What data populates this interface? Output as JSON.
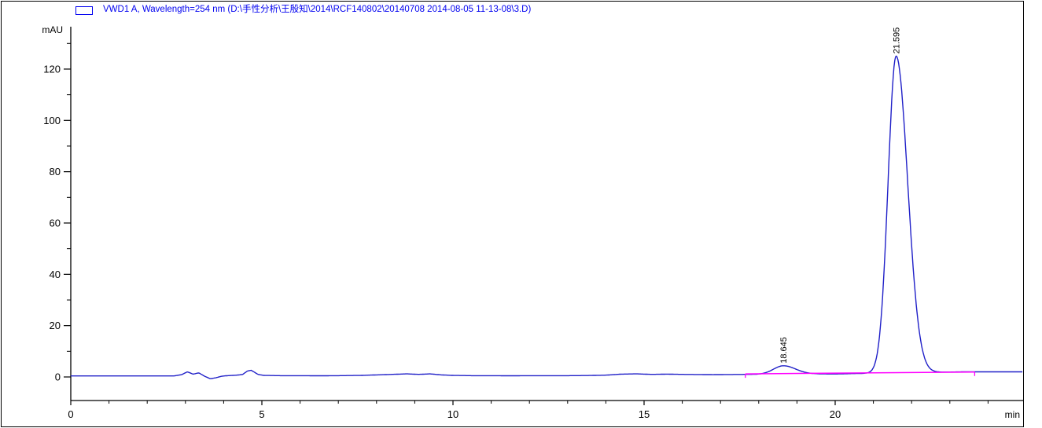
{
  "window": {
    "background": "#ffffff",
    "border_color": "#000000"
  },
  "header": {
    "title": "VWD1 A, Wavelength=254 nm (D:\\手性分析\\王殷知\\2014\\RCF140802\\20140708 2014-08-05 11-13-08\\3.D)",
    "text_color": "#0000f0",
    "swatch_border_color": "#0000f0",
    "swatch_fill": "#ffffff"
  },
  "chart_data": {
    "type": "line",
    "series_name": "VWD1 A, Wavelength=254 nm",
    "xlabel": "min",
    "ylabel": "mAU",
    "xlim": [
      0,
      24.9
    ],
    "ylim": [
      -9,
      137
    ],
    "x_ticks": [
      0,
      5,
      10,
      15,
      20
    ],
    "x_minor_step_min": 1,
    "y_ticks": [
      0,
      20,
      40,
      60,
      80,
      100,
      120
    ],
    "y_minor_step_mau": 10,
    "grid": false,
    "legend_position": "top-left",
    "axis_color": "#000000",
    "trace_color": "#2020c8",
    "integration_color": "#ff00ff",
    "peaks": [
      {
        "rt_min": 18.645,
        "label": "18.645",
        "height_mau": 3.3,
        "sigma_left_min": 0.26,
        "sigma_right_min": 0.32
      },
      {
        "rt_min": 21.595,
        "label": "21.595",
        "height_mau": 123.5,
        "sigma_left_min": 0.21,
        "sigma_right_min": 0.3
      }
    ],
    "integration_baseline": {
      "start_min": 17.65,
      "end_min": 23.65,
      "start_mau": 1.2,
      "end_mau": 1.9
    },
    "baseline_points": [
      [
        0,
        0.4
      ],
      [
        1,
        0.4
      ],
      [
        2,
        0.4
      ],
      [
        2.7,
        0.4
      ],
      [
        2.9,
        0.9
      ],
      [
        3.05,
        2.0
      ],
      [
        3.2,
        1.1
      ],
      [
        3.35,
        1.6
      ],
      [
        3.5,
        0.3
      ],
      [
        3.65,
        -0.7
      ],
      [
        3.8,
        -0.3
      ],
      [
        3.95,
        0.3
      ],
      [
        4.1,
        0.5
      ],
      [
        4.35,
        0.7
      ],
      [
        4.5,
        1.0
      ],
      [
        4.62,
        2.3
      ],
      [
        4.72,
        2.6
      ],
      [
        4.9,
        1.0
      ],
      [
        5.05,
        0.6
      ],
      [
        5.5,
        0.5
      ],
      [
        6,
        0.5
      ],
      [
        6.5,
        0.45
      ],
      [
        7,
        0.5
      ],
      [
        7.6,
        0.6
      ],
      [
        8,
        0.8
      ],
      [
        8.4,
        1.0
      ],
      [
        8.8,
        1.2
      ],
      [
        9.1,
        1.0
      ],
      [
        9.4,
        1.2
      ],
      [
        9.7,
        0.8
      ],
      [
        10,
        0.6
      ],
      [
        10.5,
        0.5
      ],
      [
        11,
        0.5
      ],
      [
        11.5,
        0.45
      ],
      [
        12,
        0.5
      ],
      [
        12.5,
        0.5
      ],
      [
        13,
        0.5
      ],
      [
        13.5,
        0.55
      ],
      [
        14,
        0.7
      ],
      [
        14.4,
        1.1
      ],
      [
        14.8,
        1.2
      ],
      [
        15.2,
        1.0
      ],
      [
        15.6,
        1.1
      ],
      [
        16,
        1.0
      ],
      [
        16.4,
        0.95
      ],
      [
        16.8,
        0.9
      ],
      [
        17.2,
        0.95
      ],
      [
        17.65,
        1.0
      ],
      [
        18.2,
        1.0
      ],
      [
        19,
        1.1
      ],
      [
        19.5,
        1.2
      ],
      [
        20,
        1.15
      ],
      [
        20.4,
        1.3
      ],
      [
        23.4,
        2.0
      ],
      [
        23.65,
        2.0
      ],
      [
        24,
        2.0
      ],
      [
        24.5,
        2.0
      ],
      [
        24.88,
        2.0
      ]
    ]
  }
}
